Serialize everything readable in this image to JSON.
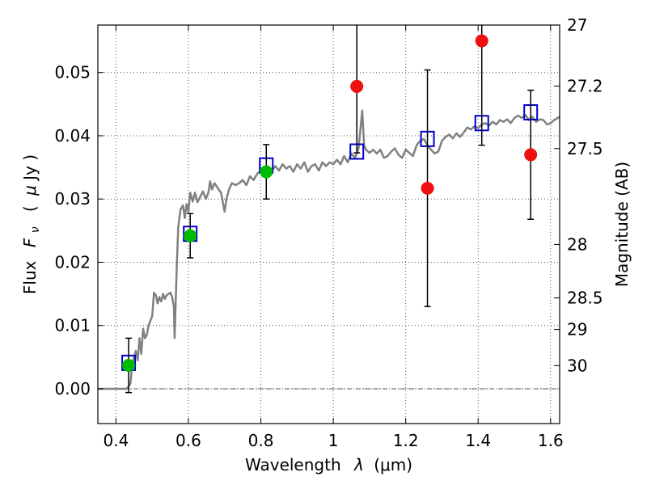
{
  "chart_data": {
    "type": "scatter",
    "title": "",
    "xlabel_text": "Wavelength",
    "xlabel_symbol": "λ",
    "xlabel_unit": "(μm)",
    "ylabel_text": "Flux",
    "ylabel_symbol": "F",
    "ylabel_symbol_sub": "ν",
    "ylabel_unit_open": "(",
    "ylabel_unit_mu": "μ",
    "ylabel_unit_rest": "Jy )",
    "y2label": "Magnitude (AB)",
    "xlim": [
      0.35,
      1.625
    ],
    "ylim": [
      -0.0055,
      0.0575
    ],
    "grid": true,
    "x_ticks": [
      0.4,
      0.6,
      0.8,
      1.0,
      1.2,
      1.4,
      1.6
    ],
    "x_tick_labels": [
      "0.4",
      "0.6",
      "0.8",
      "1",
      "1.2",
      "1.4",
      "1.6"
    ],
    "y_ticks": [
      0.0,
      0.01,
      0.02,
      0.03,
      0.04,
      0.05
    ],
    "y_tick_labels": [
      "0.00",
      "0.01",
      "0.02",
      "0.03",
      "0.04",
      "0.05"
    ],
    "y2_tick_labels": [
      "27",
      "27.2",
      "27.5",
      "28",
      "28.5",
      "29",
      "30"
    ],
    "y2_tick_flux": [
      0.0575,
      0.04785,
      0.03798,
      0.02281,
      0.01437,
      0.00937,
      0.00366
    ],
    "zero_line": 0.0,
    "colors": {
      "spectrum": "#808080",
      "model_box": "#0000cc",
      "green_point": "#00bb00",
      "red_point": "#ee1111",
      "error_bar": "#000000",
      "grid": "#555555"
    },
    "series": [
      {
        "role": "model-spectrum",
        "style": "line",
        "points": [
          [
            0.35,
            0.0
          ],
          [
            0.38,
            0.0
          ],
          [
            0.41,
            0.0
          ],
          [
            0.43,
            0.0
          ],
          [
            0.44,
            0.0008
          ],
          [
            0.445,
            0.004
          ],
          [
            0.455,
            0.006
          ],
          [
            0.46,
            0.0045
          ],
          [
            0.465,
            0.008
          ],
          [
            0.47,
            0.0055
          ],
          [
            0.475,
            0.0095
          ],
          [
            0.48,
            0.008
          ],
          [
            0.485,
            0.0085
          ],
          [
            0.49,
            0.01
          ],
          [
            0.5,
            0.0115
          ],
          [
            0.505,
            0.0152
          ],
          [
            0.51,
            0.0148
          ],
          [
            0.515,
            0.0135
          ],
          [
            0.52,
            0.0145
          ],
          [
            0.525,
            0.0138
          ],
          [
            0.53,
            0.015
          ],
          [
            0.535,
            0.0142
          ],
          [
            0.54,
            0.0148
          ],
          [
            0.55,
            0.0152
          ],
          [
            0.555,
            0.0145
          ],
          [
            0.56,
            0.013
          ],
          [
            0.562,
            0.008
          ],
          [
            0.568,
            0.0195
          ],
          [
            0.572,
            0.0255
          ],
          [
            0.578,
            0.0283
          ],
          [
            0.585,
            0.029
          ],
          [
            0.59,
            0.027
          ],
          [
            0.595,
            0.0292
          ],
          [
            0.6,
            0.028
          ],
          [
            0.605,
            0.031
          ],
          [
            0.612,
            0.0296
          ],
          [
            0.618,
            0.031
          ],
          [
            0.625,
            0.0295
          ],
          [
            0.632,
            0.0303
          ],
          [
            0.64,
            0.0312
          ],
          [
            0.648,
            0.03
          ],
          [
            0.655,
            0.031
          ],
          [
            0.66,
            0.0328
          ],
          [
            0.665,
            0.0315
          ],
          [
            0.672,
            0.0325
          ],
          [
            0.68,
            0.0318
          ],
          [
            0.69,
            0.031
          ],
          [
            0.695,
            0.0295
          ],
          [
            0.7,
            0.028
          ],
          [
            0.705,
            0.03
          ],
          [
            0.712,
            0.0315
          ],
          [
            0.72,
            0.0325
          ],
          [
            0.73,
            0.0322
          ],
          [
            0.74,
            0.0325
          ],
          [
            0.75,
            0.033
          ],
          [
            0.76,
            0.0322
          ],
          [
            0.77,
            0.0336
          ],
          [
            0.78,
            0.033
          ],
          [
            0.79,
            0.034
          ],
          [
            0.8,
            0.0345
          ],
          [
            0.81,
            0.0342
          ],
          [
            0.82,
            0.035
          ],
          [
            0.83,
            0.0345
          ],
          [
            0.84,
            0.0352
          ],
          [
            0.85,
            0.0345
          ],
          [
            0.86,
            0.0355
          ],
          [
            0.87,
            0.0348
          ],
          [
            0.88,
            0.0352
          ],
          [
            0.89,
            0.0343
          ],
          [
            0.9,
            0.0355
          ],
          [
            0.91,
            0.0348
          ],
          [
            0.92,
            0.0358
          ],
          [
            0.93,
            0.0343
          ],
          [
            0.94,
            0.0352
          ],
          [
            0.95,
            0.0355
          ],
          [
            0.96,
            0.0345
          ],
          [
            0.97,
            0.0358
          ],
          [
            0.98,
            0.0352
          ],
          [
            0.99,
            0.0358
          ],
          [
            1.0,
            0.0355
          ],
          [
            1.01,
            0.0362
          ],
          [
            1.02,
            0.0355
          ],
          [
            1.03,
            0.0368
          ],
          [
            1.04,
            0.0358
          ],
          [
            1.05,
            0.0372
          ],
          [
            1.06,
            0.0365
          ],
          [
            1.07,
            0.038
          ],
          [
            1.08,
            0.044
          ],
          [
            1.085,
            0.0385
          ],
          [
            1.09,
            0.0378
          ],
          [
            1.1,
            0.0373
          ],
          [
            1.11,
            0.0378
          ],
          [
            1.12,
            0.0372
          ],
          [
            1.13,
            0.0378
          ],
          [
            1.14,
            0.0365
          ],
          [
            1.15,
            0.0368
          ],
          [
            1.16,
            0.0375
          ],
          [
            1.17,
            0.038
          ],
          [
            1.18,
            0.037
          ],
          [
            1.19,
            0.0365
          ],
          [
            1.2,
            0.0378
          ],
          [
            1.21,
            0.0373
          ],
          [
            1.22,
            0.0368
          ],
          [
            1.23,
            0.0385
          ],
          [
            1.24,
            0.0392
          ],
          [
            1.25,
            0.0395
          ],
          [
            1.26,
            0.0385
          ],
          [
            1.27,
            0.0378
          ],
          [
            1.28,
            0.0372
          ],
          [
            1.29,
            0.0375
          ],
          [
            1.3,
            0.0392
          ],
          [
            1.31,
            0.0398
          ],
          [
            1.32,
            0.0402
          ],
          [
            1.33,
            0.0396
          ],
          [
            1.34,
            0.0404
          ],
          [
            1.35,
            0.0398
          ],
          [
            1.36,
            0.0405
          ],
          [
            1.37,
            0.0413
          ],
          [
            1.38,
            0.041
          ],
          [
            1.39,
            0.0415
          ],
          [
            1.4,
            0.0412
          ],
          [
            1.41,
            0.0418
          ],
          [
            1.42,
            0.042
          ],
          [
            1.43,
            0.0416
          ],
          [
            1.44,
            0.0422
          ],
          [
            1.45,
            0.0418
          ],
          [
            1.46,
            0.0425
          ],
          [
            1.47,
            0.0422
          ],
          [
            1.48,
            0.0426
          ],
          [
            1.49,
            0.042
          ],
          [
            1.5,
            0.0428
          ],
          [
            1.51,
            0.0432
          ],
          [
            1.52,
            0.0428
          ],
          [
            1.53,
            0.0433
          ],
          [
            1.54,
            0.0425
          ],
          [
            1.55,
            0.043
          ],
          [
            1.56,
            0.0422
          ],
          [
            1.57,
            0.0426
          ],
          [
            1.58,
            0.0425
          ],
          [
            1.59,
            0.0418
          ],
          [
            1.6,
            0.042
          ],
          [
            1.61,
            0.0425
          ],
          [
            1.625,
            0.043
          ]
        ]
      },
      {
        "role": "model-photometry",
        "style": "open-square",
        "points": [
          [
            0.435,
            0.0041
          ],
          [
            0.605,
            0.0245
          ],
          [
            0.815,
            0.0353
          ],
          [
            1.065,
            0.0375
          ],
          [
            1.26,
            0.0395
          ],
          [
            1.41,
            0.042
          ],
          [
            1.545,
            0.0437
          ]
        ]
      },
      {
        "role": "detections",
        "style": "filled-circle",
        "color_key": "green_point",
        "points": [
          [
            0.435,
            0.0037,
            0.0043
          ],
          [
            0.605,
            0.0242,
            0.0035
          ],
          [
            0.815,
            0.0343,
            0.0043
          ]
        ]
      },
      {
        "role": "upper-points",
        "style": "filled-circle",
        "color_key": "red_point",
        "points": [
          [
            1.065,
            0.0478,
            0.0105
          ],
          [
            1.26,
            0.0317,
            0.0187
          ],
          [
            1.41,
            0.055,
            0.0165
          ],
          [
            1.545,
            0.037,
            0.0102
          ]
        ]
      }
    ]
  }
}
